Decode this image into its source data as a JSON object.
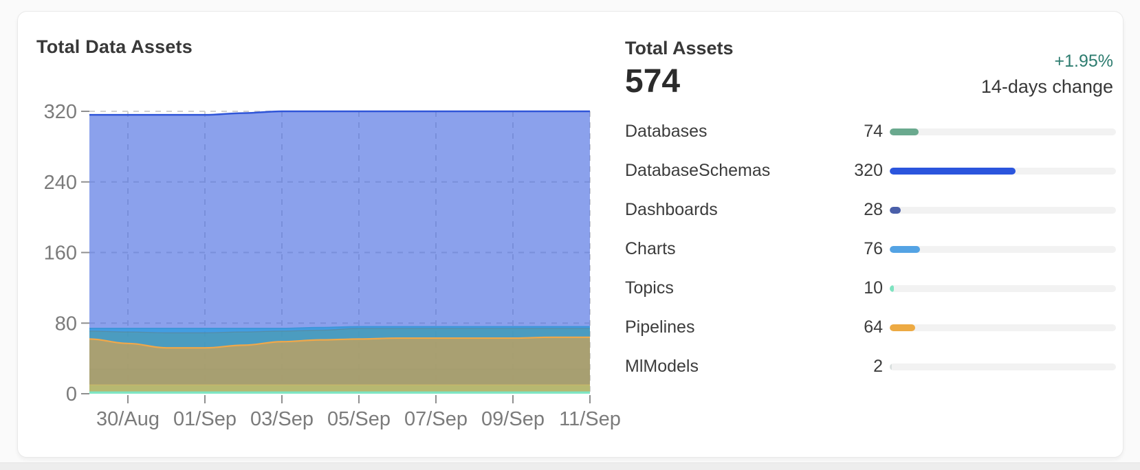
{
  "card": {
    "chart_title": "Total Data Assets",
    "summary": {
      "title": "Total Assets",
      "total": "574",
      "change_percent": "+1.95%",
      "change_label": "14-days change",
      "change_color": "#2d7c6f"
    },
    "assets_total": 574,
    "assets": [
      {
        "label": "Databases",
        "value": 74,
        "display": "74",
        "color": "#6aa98e"
      },
      {
        "label": "DatabaseSchemas",
        "value": 320,
        "display": "320",
        "color": "#2b55dd"
      },
      {
        "label": "Dashboards",
        "value": 28,
        "display": "28",
        "color": "#4a5fa9"
      },
      {
        "label": "Charts",
        "value": 76,
        "display": "76",
        "color": "#54a3e4"
      },
      {
        "label": "Topics",
        "value": 10,
        "display": "10",
        "color": "#7ee3c0"
      },
      {
        "label": "Pipelines",
        "value": 64,
        "display": "64",
        "color": "#edaa43"
      },
      {
        "label": "MlModels",
        "value": 2,
        "display": "2",
        "color": "#d9dfde"
      }
    ]
  },
  "chart_data": {
    "type": "area",
    "stacked": false,
    "title": "Total Data Assets",
    "xlabel": "",
    "ylabel": "",
    "ylim": [
      0,
      320
    ],
    "y_ticks": [
      0,
      80,
      160,
      240,
      320
    ],
    "num_days": 14,
    "x_tick_days": [
      1,
      3,
      5,
      7,
      9,
      11,
      13
    ],
    "x_tick_labels": [
      "30/Aug",
      "01/Sep",
      "03/Sep",
      "05/Sep",
      "07/Sep",
      "09/Sep",
      "11/Sep"
    ],
    "grid": {
      "horizontal": true,
      "vertical": true,
      "style": "dashed",
      "color": "#d0d0d0"
    },
    "axis_label_color": "#7b7b7b",
    "legend_position": "none",
    "series": [
      {
        "name": "DatabaseSchemas",
        "values": [
          316,
          316,
          316,
          316,
          318,
          320,
          320,
          320,
          320,
          320,
          320,
          320,
          320,
          320
        ],
        "fill": "rgba(67,104,224,0.62)",
        "stroke": "#2f55d8",
        "stroke_width": 2.5
      },
      {
        "name": "Dashboards",
        "values": [
          28,
          28,
          28,
          28,
          28,
          28,
          28,
          28,
          28,
          28,
          28,
          28,
          28,
          28
        ],
        "fill": "rgba(63,81,163,0.28)",
        "stroke": "rgba(63,81,163,0.45)",
        "stroke_width": 1.2
      },
      {
        "name": "Charts",
        "values": [
          74,
          74,
          74,
          74,
          74,
          74,
          75,
          76,
          76,
          76,
          76,
          76,
          76,
          76
        ],
        "fill": "rgba(47,156,224,0.80)",
        "stroke": "#3d95d8",
        "stroke_width": 1.8
      },
      {
        "name": "Databases",
        "values": [
          71,
          70,
          69,
          69,
          70,
          71,
          72,
          74,
          74,
          74,
          74,
          74,
          74,
          74
        ],
        "fill": "rgba(92,154,128,0.35)",
        "stroke": "rgba(96,130,140,0.55)",
        "stroke_width": 1.4
      },
      {
        "name": "Topics",
        "values": [
          10,
          10,
          10,
          10,
          10,
          10,
          10,
          10,
          10,
          10,
          10,
          10,
          10,
          10
        ],
        "fill": "rgba(120,230,190,0.80)",
        "stroke": "rgba(150,212,170,0.90)",
        "stroke_width": 1.4
      },
      {
        "name": "Pipelines",
        "values": [
          62,
          57,
          52,
          52,
          55,
          59,
          61,
          62,
          63,
          63,
          63,
          63,
          64,
          64
        ],
        "fill": "rgba(232,163,61,0.60)",
        "stroke": "#f0a84a",
        "stroke_width": 2.2
      },
      {
        "name": "MlModels",
        "values": [
          2,
          2,
          2,
          2,
          2,
          2,
          2,
          2,
          2,
          2,
          2,
          2,
          2,
          2
        ],
        "fill": "rgba(125,232,200,0.95)",
        "stroke": "#7de4c3",
        "stroke_width": 1.5
      }
    ]
  }
}
